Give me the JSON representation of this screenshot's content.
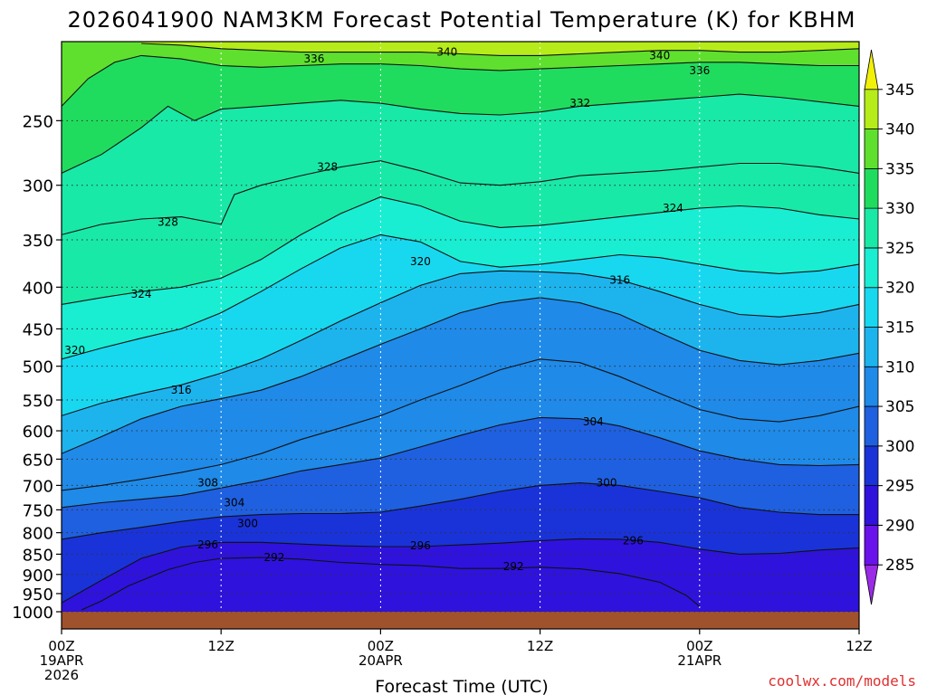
{
  "chart_data": {
    "type": "heatmap",
    "title": "2026041900 NAM3KM Forecast Potential Temperature (K) for KBHM",
    "xlabel": "Forecast Time (UTC)",
    "ylabel": "",
    "x_range_hours": [
      0,
      60
    ],
    "y_range_hpa": [
      200,
      1000
    ],
    "y_scale": "log",
    "grid": true,
    "x_ticks": [
      {
        "hour": 0,
        "lines": [
          "00Z",
          "19APR",
          "2026"
        ]
      },
      {
        "hour": 12,
        "lines": [
          "12Z"
        ]
      },
      {
        "hour": 24,
        "lines": [
          "00Z",
          "20APR"
        ]
      },
      {
        "hour": 36,
        "lines": [
          "12Z"
        ]
      },
      {
        "hour": 48,
        "lines": [
          "00Z",
          "21APR"
        ]
      },
      {
        "hour": 60,
        "lines": [
          "12Z"
        ]
      }
    ],
    "y_ticks": [
      250,
      300,
      350,
      400,
      450,
      500,
      550,
      600,
      650,
      700,
      750,
      800,
      850,
      900,
      950,
      1000
    ],
    "colorbar": {
      "ticks": [
        285,
        290,
        295,
        300,
        305,
        310,
        315,
        320,
        325,
        330,
        335,
        340,
        345
      ],
      "colors": [
        "#9a2ae6",
        "#6a12ea",
        "#2f12dc",
        "#1a33d8",
        "#1f60e0",
        "#1f8ae8",
        "#1db4ee",
        "#18d8f0",
        "#19eed2",
        "#19e9a6",
        "#20dc5e",
        "#5fe02f",
        "#b6ec1a",
        "#f0f008"
      ]
    },
    "terrain_color": "#a0522d",
    "terrain_pressure_hpa": 1000,
    "contours": [
      {
        "value": 292,
        "points": [
          [
            1.5,
            995
          ],
          [
            3,
            970
          ],
          [
            5,
            930
          ],
          [
            8,
            888
          ],
          [
            10,
            870
          ],
          [
            12,
            860
          ],
          [
            15,
            858
          ],
          [
            18,
            862
          ],
          [
            21,
            870
          ],
          [
            24,
            875
          ],
          [
            27,
            878
          ],
          [
            30,
            885
          ],
          [
            33,
            885
          ],
          [
            36,
            882
          ],
          [
            39,
            886
          ],
          [
            42,
            898
          ],
          [
            45,
            920
          ],
          [
            47,
            955
          ],
          [
            48,
            985
          ]
        ]
      },
      {
        "value": 296,
        "points": [
          [
            0,
            975
          ],
          [
            3,
            915
          ],
          [
            6,
            860
          ],
          [
            9,
            833
          ],
          [
            12,
            822
          ],
          [
            15,
            822
          ],
          [
            18,
            826
          ],
          [
            21,
            830
          ],
          [
            24,
            832
          ],
          [
            27,
            832
          ],
          [
            30,
            828
          ],
          [
            33,
            824
          ],
          [
            36,
            818
          ],
          [
            39,
            814
          ],
          [
            42,
            815
          ],
          [
            45,
            822
          ],
          [
            48,
            838
          ],
          [
            51,
            850
          ],
          [
            54,
            848
          ],
          [
            57,
            840
          ],
          [
            60,
            835
          ]
        ]
      },
      {
        "value": 300,
        "points": [
          [
            0,
            815
          ],
          [
            3,
            800
          ],
          [
            6,
            788
          ],
          [
            9,
            775
          ],
          [
            12,
            765
          ],
          [
            15,
            760
          ],
          [
            18,
            758
          ],
          [
            21,
            758
          ],
          [
            24,
            755
          ],
          [
            27,
            742
          ],
          [
            30,
            728
          ],
          [
            33,
            712
          ],
          [
            36,
            700
          ],
          [
            39,
            695
          ],
          [
            42,
            700
          ],
          [
            45,
            712
          ],
          [
            48,
            725
          ],
          [
            51,
            745
          ],
          [
            54,
            755
          ],
          [
            57,
            760
          ],
          [
            60,
            760
          ]
        ]
      },
      {
        "value": 304,
        "points": [
          [
            0,
            745
          ],
          [
            3,
            735
          ],
          [
            6,
            728
          ],
          [
            9,
            720
          ],
          [
            12,
            705
          ],
          [
            15,
            690
          ],
          [
            18,
            672
          ],
          [
            21,
            660
          ],
          [
            24,
            648
          ],
          [
            27,
            628
          ],
          [
            30,
            608
          ],
          [
            33,
            590
          ],
          [
            36,
            578
          ],
          [
            39,
            580
          ],
          [
            42,
            592
          ],
          [
            45,
            612
          ],
          [
            48,
            635
          ],
          [
            51,
            650
          ],
          [
            54,
            660
          ],
          [
            57,
            662
          ],
          [
            60,
            660
          ]
        ]
      },
      {
        "value": 308,
        "points": [
          [
            0,
            710
          ],
          [
            3,
            700
          ],
          [
            6,
            688
          ],
          [
            9,
            675
          ],
          [
            12,
            660
          ],
          [
            15,
            640
          ],
          [
            18,
            615
          ],
          [
            21,
            595
          ],
          [
            24,
            575
          ],
          [
            27,
            550
          ],
          [
            30,
            528
          ],
          [
            33,
            505
          ],
          [
            36,
            490
          ],
          [
            39,
            495
          ],
          [
            42,
            515
          ],
          [
            45,
            540
          ],
          [
            48,
            565
          ],
          [
            51,
            580
          ],
          [
            54,
            585
          ],
          [
            57,
            575
          ],
          [
            60,
            560
          ]
        ]
      },
      {
        "value": 312,
        "points": [
          [
            0,
            640
          ],
          [
            3,
            610
          ],
          [
            6,
            580
          ],
          [
            9,
            560
          ],
          [
            12,
            548
          ],
          [
            15,
            535
          ],
          [
            18,
            515
          ],
          [
            21,
            492
          ],
          [
            24,
            470
          ],
          [
            27,
            450
          ],
          [
            30,
            430
          ],
          [
            33,
            418
          ],
          [
            36,
            412
          ],
          [
            39,
            418
          ],
          [
            42,
            432
          ],
          [
            45,
            455
          ],
          [
            48,
            478
          ],
          [
            51,
            492
          ],
          [
            54,
            498
          ],
          [
            57,
            492
          ],
          [
            60,
            482
          ]
        ]
      },
      {
        "value": 316,
        "points": [
          [
            0,
            575
          ],
          [
            3,
            555
          ],
          [
            6,
            540
          ],
          [
            9,
            527
          ],
          [
            12,
            510
          ],
          [
            15,
            490
          ],
          [
            18,
            465
          ],
          [
            21,
            440
          ],
          [
            24,
            418
          ],
          [
            27,
            398
          ],
          [
            30,
            385
          ],
          [
            33,
            382
          ],
          [
            36,
            383
          ],
          [
            39,
            385
          ],
          [
            42,
            392
          ],
          [
            45,
            405
          ],
          [
            48,
            420
          ],
          [
            51,
            432
          ],
          [
            54,
            435
          ],
          [
            57,
            430
          ],
          [
            60,
            420
          ]
        ]
      },
      {
        "value": 320,
        "points": [
          [
            0,
            490
          ],
          [
            3,
            475
          ],
          [
            6,
            462
          ],
          [
            9,
            450
          ],
          [
            12,
            430
          ],
          [
            15,
            405
          ],
          [
            18,
            380
          ],
          [
            21,
            358
          ],
          [
            24,
            345
          ],
          [
            27,
            352
          ],
          [
            30,
            372
          ],
          [
            33,
            378
          ],
          [
            36,
            375
          ],
          [
            39,
            370
          ],
          [
            42,
            365
          ],
          [
            45,
            368
          ],
          [
            48,
            375
          ],
          [
            51,
            382
          ],
          [
            54,
            385
          ],
          [
            57,
            382
          ],
          [
            60,
            375
          ]
        ]
      },
      {
        "value": 324,
        "points": [
          [
            0,
            420
          ],
          [
            3,
            412
          ],
          [
            6,
            405
          ],
          [
            9,
            400
          ],
          [
            12,
            390
          ],
          [
            15,
            370
          ],
          [
            18,
            345
          ],
          [
            21,
            325
          ],
          [
            24,
            310
          ],
          [
            27,
            318
          ],
          [
            30,
            332
          ],
          [
            33,
            338
          ],
          [
            36,
            336
          ],
          [
            39,
            332
          ],
          [
            42,
            328
          ],
          [
            45,
            324
          ],
          [
            48,
            320
          ],
          [
            51,
            318
          ],
          [
            54,
            320
          ],
          [
            57,
            326
          ],
          [
            60,
            330
          ]
        ]
      },
      {
        "value": 328,
        "points": [
          [
            0,
            345
          ],
          [
            3,
            335
          ],
          [
            6,
            330
          ],
          [
            9,
            328
          ],
          [
            12,
            335
          ],
          [
            13,
            308
          ],
          [
            15,
            300
          ],
          [
            18,
            292
          ],
          [
            21,
            285
          ],
          [
            24,
            280
          ],
          [
            27,
            288
          ],
          [
            30,
            298
          ],
          [
            33,
            300
          ],
          [
            36,
            297
          ],
          [
            39,
            292
          ],
          [
            42,
            290
          ],
          [
            45,
            288
          ],
          [
            48,
            285
          ],
          [
            51,
            282
          ],
          [
            54,
            282
          ],
          [
            57,
            285
          ],
          [
            60,
            290
          ]
        ]
      },
      {
        "value": 332,
        "points": [
          [
            0,
            290
          ],
          [
            3,
            275
          ],
          [
            6,
            255
          ],
          [
            8,
            240
          ],
          [
            10,
            250
          ],
          [
            12,
            242
          ],
          [
            15,
            240
          ],
          [
            18,
            238
          ],
          [
            21,
            236
          ],
          [
            24,
            238
          ],
          [
            27,
            242
          ],
          [
            30,
            245
          ],
          [
            33,
            246
          ],
          [
            36,
            244
          ],
          [
            39,
            240
          ],
          [
            42,
            238
          ],
          [
            45,
            236
          ],
          [
            48,
            234
          ],
          [
            51,
            232
          ],
          [
            54,
            234
          ],
          [
            57,
            237
          ],
          [
            60,
            240
          ]
        ]
      },
      {
        "value": 336,
        "points": [
          [
            0,
            240
          ],
          [
            2,
            222
          ],
          [
            4,
            212
          ],
          [
            6,
            208
          ],
          [
            9,
            210
          ],
          [
            12,
            214
          ],
          [
            15,
            215
          ],
          [
            18,
            214
          ],
          [
            21,
            213
          ],
          [
            24,
            213
          ],
          [
            27,
            214
          ],
          [
            30,
            216
          ],
          [
            33,
            217
          ],
          [
            36,
            216
          ],
          [
            39,
            215
          ],
          [
            42,
            214
          ],
          [
            45,
            213
          ],
          [
            48,
            212
          ],
          [
            51,
            212
          ],
          [
            54,
            213
          ],
          [
            57,
            214
          ],
          [
            60,
            214
          ]
        ]
      },
      {
        "value": 340,
        "points": [
          [
            6,
            201
          ],
          [
            9,
            202
          ],
          [
            12,
            204
          ],
          [
            15,
            205
          ],
          [
            18,
            206
          ],
          [
            21,
            206
          ],
          [
            24,
            206
          ],
          [
            27,
            206
          ],
          [
            30,
            207
          ],
          [
            33,
            208
          ],
          [
            36,
            208
          ],
          [
            39,
            207
          ],
          [
            42,
            206
          ],
          [
            45,
            205
          ],
          [
            48,
            205
          ],
          [
            51,
            206
          ],
          [
            54,
            206
          ],
          [
            57,
            205
          ],
          [
            60,
            204
          ]
        ]
      }
    ],
    "contour_labels": [
      {
        "text": "340",
        "hour": 29,
        "hpa": 206
      },
      {
        "text": "340",
        "hour": 45,
        "hpa": 208
      },
      {
        "text": "336",
        "hour": 19,
        "hpa": 210
      },
      {
        "text": "336",
        "hour": 48,
        "hpa": 217
      },
      {
        "text": "332",
        "hour": 39,
        "hpa": 238
      },
      {
        "text": "328",
        "hour": 20,
        "hpa": 285
      },
      {
        "text": "328",
        "hour": 8,
        "hpa": 333
      },
      {
        "text": "324",
        "hour": 46,
        "hpa": 320
      },
      {
        "text": "324",
        "hour": 6,
        "hpa": 408
      },
      {
        "text": "320",
        "hour": 27,
        "hpa": 372
      },
      {
        "text": "320",
        "hour": 1,
        "hpa": 478
      },
      {
        "text": "316",
        "hour": 42,
        "hpa": 392
      },
      {
        "text": "316",
        "hour": 9,
        "hpa": 535
      },
      {
        "text": "304",
        "hour": 40,
        "hpa": 585
      },
      {
        "text": "300",
        "hour": 41,
        "hpa": 695
      },
      {
        "text": "308",
        "hour": 11,
        "hpa": 695
      },
      {
        "text": "304",
        "hour": 13,
        "hpa": 735
      },
      {
        "text": "300",
        "hour": 14,
        "hpa": 780
      },
      {
        "text": "296",
        "hour": 11,
        "hpa": 828
      },
      {
        "text": "296",
        "hour": 27,
        "hpa": 830
      },
      {
        "text": "296",
        "hour": 43,
        "hpa": 818
      },
      {
        "text": "292",
        "hour": 16,
        "hpa": 858
      },
      {
        "text": "292",
        "hour": 34,
        "hpa": 880
      }
    ]
  },
  "watermark": "coolwx.com/models"
}
